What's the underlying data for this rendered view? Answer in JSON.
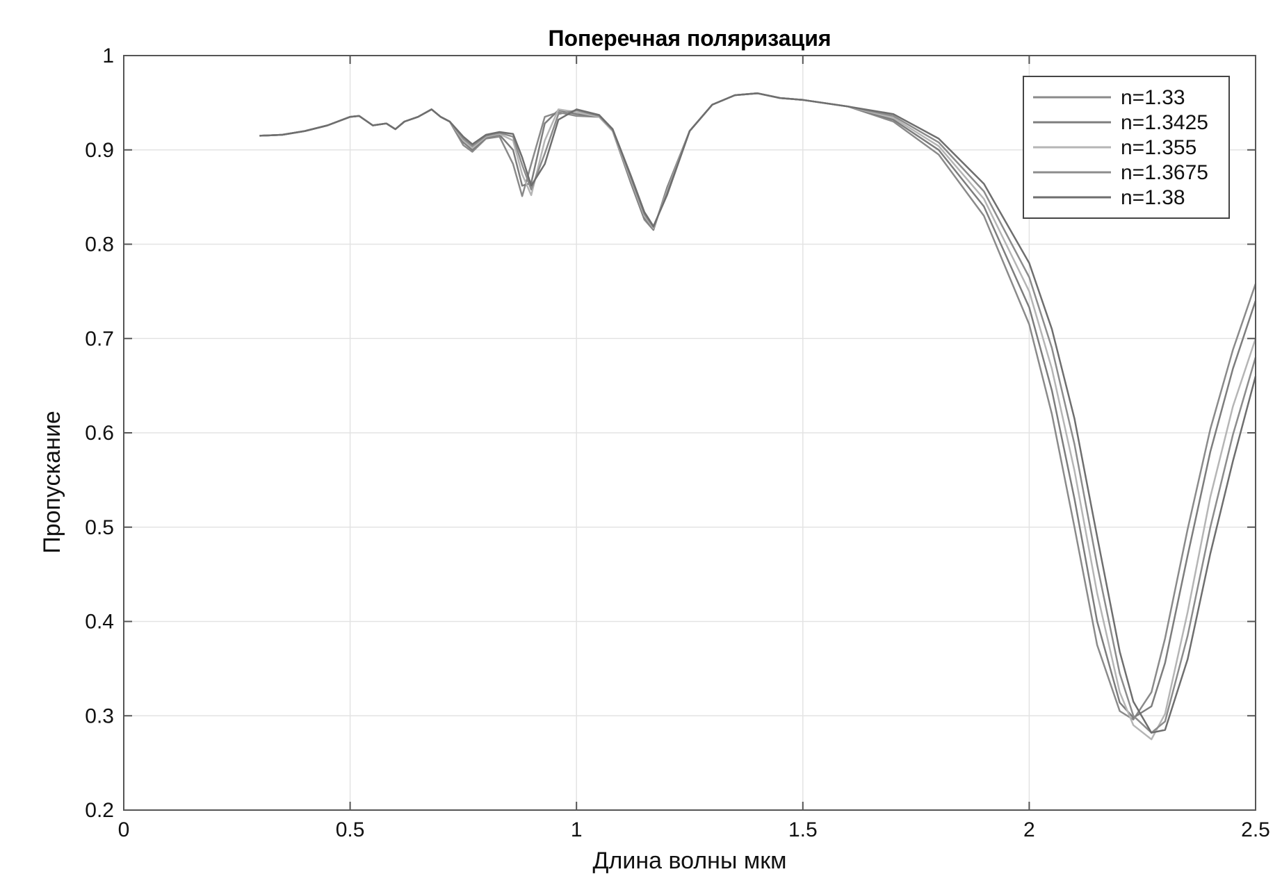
{
  "chart_data": {
    "type": "line",
    "title": "Поперечная поляризация",
    "xlabel": "Длина волны мкм",
    "ylabel": "Пропускание",
    "xlim": [
      0,
      2.5
    ],
    "ylim": [
      0.2,
      1
    ],
    "xticks": [
      0,
      0.5,
      1,
      1.5,
      2,
      2.5
    ],
    "xtick_labels": [
      "0",
      "0.5",
      "1",
      "1.5",
      "2",
      "2.5"
    ],
    "yticks": [
      0.2,
      0.3,
      0.4,
      0.5,
      0.6,
      0.7,
      0.8,
      0.9,
      1
    ],
    "ytick_labels": [
      "0.2",
      "0.3",
      "0.4",
      "0.5",
      "0.6",
      "0.7",
      "0.8",
      "0.9",
      "1"
    ],
    "grid": true,
    "legend_position": "top-right",
    "series": [
      {
        "name": "n=1.33",
        "color": "#8a8a8a",
        "x": [
          0.3,
          0.35,
          0.4,
          0.45,
          0.5,
          0.52,
          0.55,
          0.58,
          0.6,
          0.62,
          0.65,
          0.68,
          0.7,
          0.72,
          0.75,
          0.77,
          0.8,
          0.83,
          0.86,
          0.88,
          0.9,
          0.93,
          0.96,
          1.0,
          1.05,
          1.08,
          1.12,
          1.15,
          1.17,
          1.2,
          1.25,
          1.3,
          1.35,
          1.4,
          1.45,
          1.5,
          1.6,
          1.7,
          1.8,
          1.9,
          2.0,
          2.05,
          2.1,
          2.15,
          2.2,
          2.23,
          2.27,
          2.3,
          2.35,
          2.4,
          2.45,
          2.5
        ],
        "y": [
          0.915,
          0.916,
          0.92,
          0.926,
          0.935,
          0.936,
          0.926,
          0.928,
          0.922,
          0.93,
          0.935,
          0.943,
          0.935,
          0.93,
          0.905,
          0.898,
          0.912,
          0.914,
          0.885,
          0.851,
          0.885,
          0.935,
          0.94,
          0.936,
          0.935,
          0.92,
          0.865,
          0.826,
          0.815,
          0.86,
          0.92,
          0.948,
          0.958,
          0.96,
          0.955,
          0.953,
          0.946,
          0.93,
          0.895,
          0.83,
          0.715,
          0.62,
          0.5,
          0.375,
          0.305,
          0.296,
          0.325,
          0.382,
          0.498,
          0.604,
          0.688,
          0.758
        ]
      },
      {
        "name": "n=1.3425",
        "color": "#7d7d7d",
        "x": [
          0.3,
          0.35,
          0.4,
          0.45,
          0.5,
          0.52,
          0.55,
          0.58,
          0.6,
          0.62,
          0.65,
          0.68,
          0.7,
          0.72,
          0.75,
          0.77,
          0.8,
          0.83,
          0.86,
          0.88,
          0.9,
          0.93,
          0.96,
          1.0,
          1.05,
          1.08,
          1.12,
          1.15,
          1.17,
          1.2,
          1.25,
          1.3,
          1.35,
          1.4,
          1.45,
          1.5,
          1.6,
          1.7,
          1.8,
          1.9,
          2.0,
          2.05,
          2.1,
          2.15,
          2.2,
          2.23,
          2.27,
          2.3,
          2.35,
          2.4,
          2.45,
          2.5
        ],
        "y": [
          0.915,
          0.916,
          0.92,
          0.926,
          0.935,
          0.936,
          0.926,
          0.928,
          0.922,
          0.93,
          0.935,
          0.943,
          0.935,
          0.93,
          0.908,
          0.9,
          0.913,
          0.916,
          0.9,
          0.862,
          0.865,
          0.928,
          0.942,
          0.938,
          0.935,
          0.92,
          0.867,
          0.828,
          0.816,
          0.858,
          0.92,
          0.948,
          0.958,
          0.96,
          0.955,
          0.953,
          0.946,
          0.932,
          0.9,
          0.84,
          0.733,
          0.645,
          0.53,
          0.4,
          0.314,
          0.298,
          0.31,
          0.356,
          0.47,
          0.58,
          0.668,
          0.74
        ]
      },
      {
        "name": "n=1.355",
        "color": "#b5b5b5",
        "x": [
          0.3,
          0.35,
          0.4,
          0.45,
          0.5,
          0.52,
          0.55,
          0.58,
          0.6,
          0.62,
          0.65,
          0.68,
          0.7,
          0.72,
          0.75,
          0.77,
          0.8,
          0.83,
          0.86,
          0.88,
          0.9,
          0.93,
          0.96,
          1.0,
          1.05,
          1.08,
          1.12,
          1.15,
          1.17,
          1.2,
          1.25,
          1.3,
          1.35,
          1.4,
          1.45,
          1.5,
          1.6,
          1.7,
          1.8,
          1.9,
          2.0,
          2.05,
          2.1,
          2.15,
          2.2,
          2.23,
          2.27,
          2.3,
          2.35,
          2.4,
          2.45,
          2.5
        ],
        "y": [
          0.915,
          0.916,
          0.92,
          0.926,
          0.935,
          0.936,
          0.926,
          0.928,
          0.922,
          0.93,
          0.935,
          0.943,
          0.935,
          0.93,
          0.91,
          0.902,
          0.914,
          0.917,
          0.91,
          0.874,
          0.852,
          0.91,
          0.943,
          0.94,
          0.935,
          0.92,
          0.869,
          0.83,
          0.817,
          0.856,
          0.92,
          0.948,
          0.958,
          0.96,
          0.955,
          0.953,
          0.946,
          0.934,
          0.904,
          0.848,
          0.75,
          0.668,
          0.56,
          0.43,
          0.325,
          0.29,
          0.275,
          0.302,
          0.41,
          0.532,
          0.628,
          0.7
        ]
      },
      {
        "name": "n=1.3675",
        "color": "#8c8c8c",
        "x": [
          0.3,
          0.35,
          0.4,
          0.45,
          0.5,
          0.52,
          0.55,
          0.58,
          0.6,
          0.62,
          0.65,
          0.68,
          0.7,
          0.72,
          0.75,
          0.77,
          0.8,
          0.83,
          0.86,
          0.88,
          0.9,
          0.93,
          0.96,
          1.0,
          1.05,
          1.08,
          1.12,
          1.15,
          1.17,
          1.2,
          1.25,
          1.3,
          1.35,
          1.4,
          1.45,
          1.5,
          1.6,
          1.7,
          1.8,
          1.9,
          2.0,
          2.05,
          2.1,
          2.15,
          2.2,
          2.23,
          2.27,
          2.3,
          2.35,
          2.4,
          2.45,
          2.5
        ],
        "y": [
          0.915,
          0.916,
          0.92,
          0.926,
          0.935,
          0.936,
          0.926,
          0.928,
          0.922,
          0.93,
          0.935,
          0.943,
          0.935,
          0.93,
          0.912,
          0.904,
          0.915,
          0.918,
          0.914,
          0.884,
          0.858,
          0.896,
          0.938,
          0.942,
          0.936,
          0.921,
          0.871,
          0.832,
          0.818,
          0.854,
          0.92,
          0.948,
          0.958,
          0.96,
          0.955,
          0.953,
          0.946,
          0.936,
          0.908,
          0.856,
          0.765,
          0.69,
          0.588,
          0.46,
          0.345,
          0.3,
          0.282,
          0.294,
          0.385,
          0.5,
          0.598,
          0.68
        ]
      },
      {
        "name": "n=1.38",
        "color": "#6e6e6e",
        "x": [
          0.3,
          0.35,
          0.4,
          0.45,
          0.5,
          0.52,
          0.55,
          0.58,
          0.6,
          0.62,
          0.65,
          0.68,
          0.7,
          0.72,
          0.75,
          0.77,
          0.8,
          0.83,
          0.86,
          0.88,
          0.9,
          0.93,
          0.96,
          1.0,
          1.05,
          1.08,
          1.12,
          1.15,
          1.17,
          1.2,
          1.25,
          1.3,
          1.35,
          1.4,
          1.45,
          1.5,
          1.6,
          1.7,
          1.8,
          1.9,
          2.0,
          2.05,
          2.1,
          2.15,
          2.2,
          2.23,
          2.27,
          2.3,
          2.35,
          2.4,
          2.45,
          2.5
        ],
        "y": [
          0.915,
          0.916,
          0.92,
          0.926,
          0.935,
          0.936,
          0.926,
          0.928,
          0.922,
          0.93,
          0.935,
          0.943,
          0.935,
          0.93,
          0.914,
          0.906,
          0.916,
          0.919,
          0.917,
          0.892,
          0.862,
          0.885,
          0.932,
          0.943,
          0.937,
          0.922,
          0.873,
          0.834,
          0.819,
          0.852,
          0.92,
          0.948,
          0.958,
          0.96,
          0.955,
          0.953,
          0.946,
          0.938,
          0.912,
          0.864,
          0.78,
          0.71,
          0.615,
          0.49,
          0.368,
          0.315,
          0.282,
          0.285,
          0.36,
          0.472,
          0.57,
          0.66
        ]
      }
    ]
  }
}
